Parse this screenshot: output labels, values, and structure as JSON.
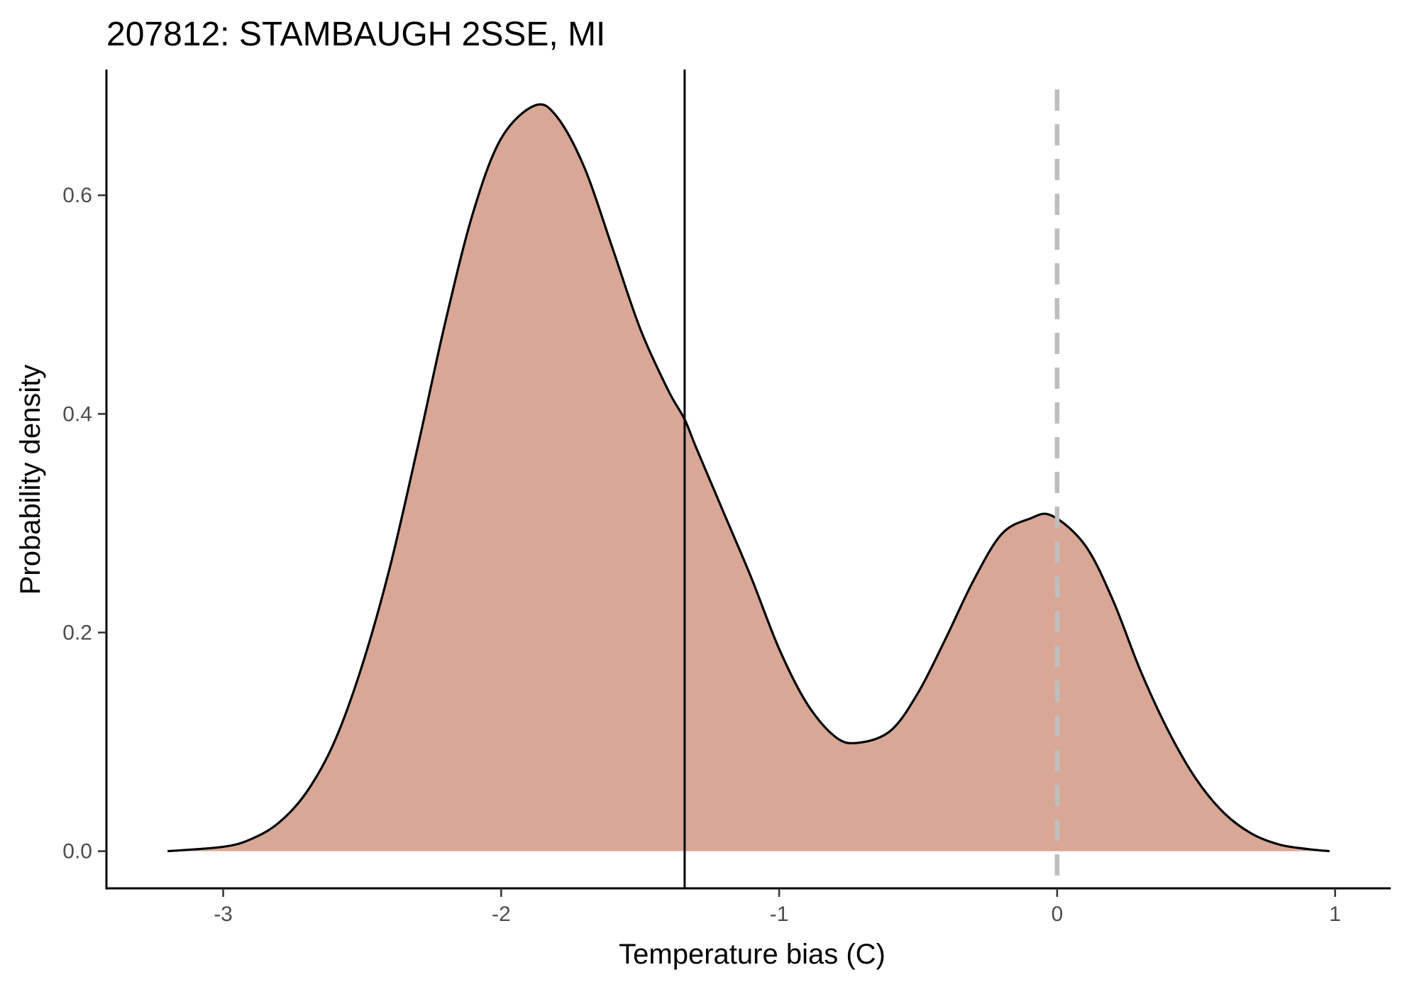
{
  "chart_data": {
    "type": "area",
    "title": "207812: STAMBAUGH 2SSE, MI",
    "xlabel": "Temperature bias (C)",
    "ylabel": "Probability density",
    "xlim": [
      -3.42,
      1.2
    ],
    "ylim": [
      -0.034,
      0.715
    ],
    "x_ticks": [
      -3,
      -2,
      -1,
      0,
      1
    ],
    "y_ticks": [
      0.0,
      0.2,
      0.4,
      0.6
    ],
    "x_tick_labels": [
      "-3",
      "-2",
      "-1",
      "0",
      "1"
    ],
    "y_tick_labels": [
      "0.0",
      "0.2",
      "0.4",
      "0.6"
    ],
    "grid": false,
    "series": [
      {
        "values": [
          [
            -3.2,
            0.0
          ],
          [
            -3.0,
            0.004
          ],
          [
            -2.9,
            0.011
          ],
          [
            -2.8,
            0.026
          ],
          [
            -2.7,
            0.054
          ],
          [
            -2.6,
            0.1
          ],
          [
            -2.5,
            0.17
          ],
          [
            -2.4,
            0.26
          ],
          [
            -2.3,
            0.37
          ],
          [
            -2.2,
            0.485
          ],
          [
            -2.1,
            0.585
          ],
          [
            -2.0,
            0.652
          ],
          [
            -1.88,
            0.682
          ],
          [
            -1.8,
            0.672
          ],
          [
            -1.7,
            0.625
          ],
          [
            -1.6,
            0.552
          ],
          [
            -1.5,
            0.478
          ],
          [
            -1.4,
            0.422
          ],
          [
            -1.34,
            0.395
          ],
          [
            -1.3,
            0.37
          ],
          [
            -1.2,
            0.31
          ],
          [
            -1.1,
            0.25
          ],
          [
            -1.0,
            0.185
          ],
          [
            -0.9,
            0.135
          ],
          [
            -0.8,
            0.105
          ],
          [
            -0.72,
            0.099
          ],
          [
            -0.6,
            0.11
          ],
          [
            -0.5,
            0.145
          ],
          [
            -0.4,
            0.195
          ],
          [
            -0.3,
            0.248
          ],
          [
            -0.2,
            0.29
          ],
          [
            -0.1,
            0.304
          ],
          [
            -0.02,
            0.307
          ],
          [
            0.1,
            0.28
          ],
          [
            0.2,
            0.23
          ],
          [
            0.3,
            0.165
          ],
          [
            0.4,
            0.11
          ],
          [
            0.5,
            0.066
          ],
          [
            0.6,
            0.035
          ],
          [
            0.7,
            0.016
          ],
          [
            0.8,
            0.006
          ],
          [
            0.9,
            0.002
          ],
          [
            0.98,
            0.0
          ]
        ],
        "color": "#D9A795",
        "line_color": "#000000"
      }
    ],
    "reference_lines": [
      {
        "x": -1.34,
        "color": "#000000",
        "dashed": false
      },
      {
        "x": 0.0,
        "color": "#BEBEBE",
        "dashed": true
      }
    ]
  }
}
